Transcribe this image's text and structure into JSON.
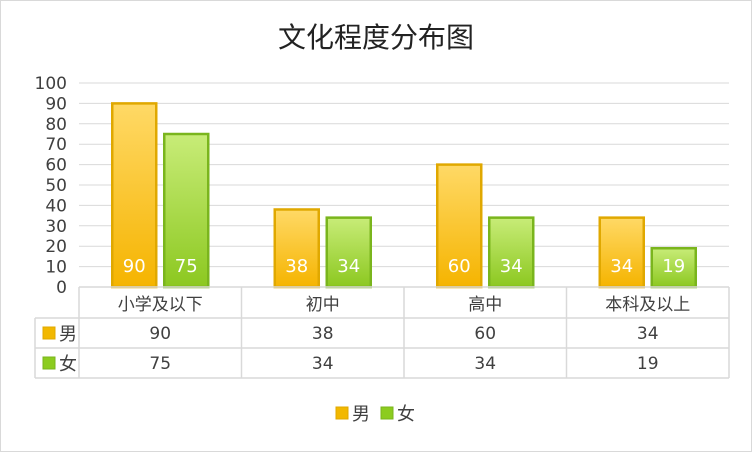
{
  "chart_data": {
    "type": "bar",
    "title": "文化程度分布图",
    "categories": [
      "小学及以下",
      "初中",
      "高中",
      "本科及以上"
    ],
    "series": [
      {
        "name": "男",
        "values": [
          90,
          38,
          60,
          34
        ],
        "color": "#f2b800"
      },
      {
        "name": "女",
        "values": [
          75,
          34,
          34,
          19
        ],
        "color": "#8ccc1f"
      }
    ],
    "ylim": [
      0,
      100
    ],
    "yticks": [
      0,
      10,
      20,
      30,
      40,
      50,
      60,
      70,
      80,
      90,
      100
    ],
    "grid": true,
    "data_table": true,
    "legend": "bottom-center",
    "colors": {
      "male_fill_top": "#ffd966",
      "male_fill_bottom": "#f5b400",
      "male_stroke": "#e0a800",
      "female_fill_top": "#c8ec78",
      "female_fill_bottom": "#8cc820",
      "female_stroke": "#7ab51d",
      "grid": "#d9d9d9",
      "text": "#404040"
    }
  }
}
